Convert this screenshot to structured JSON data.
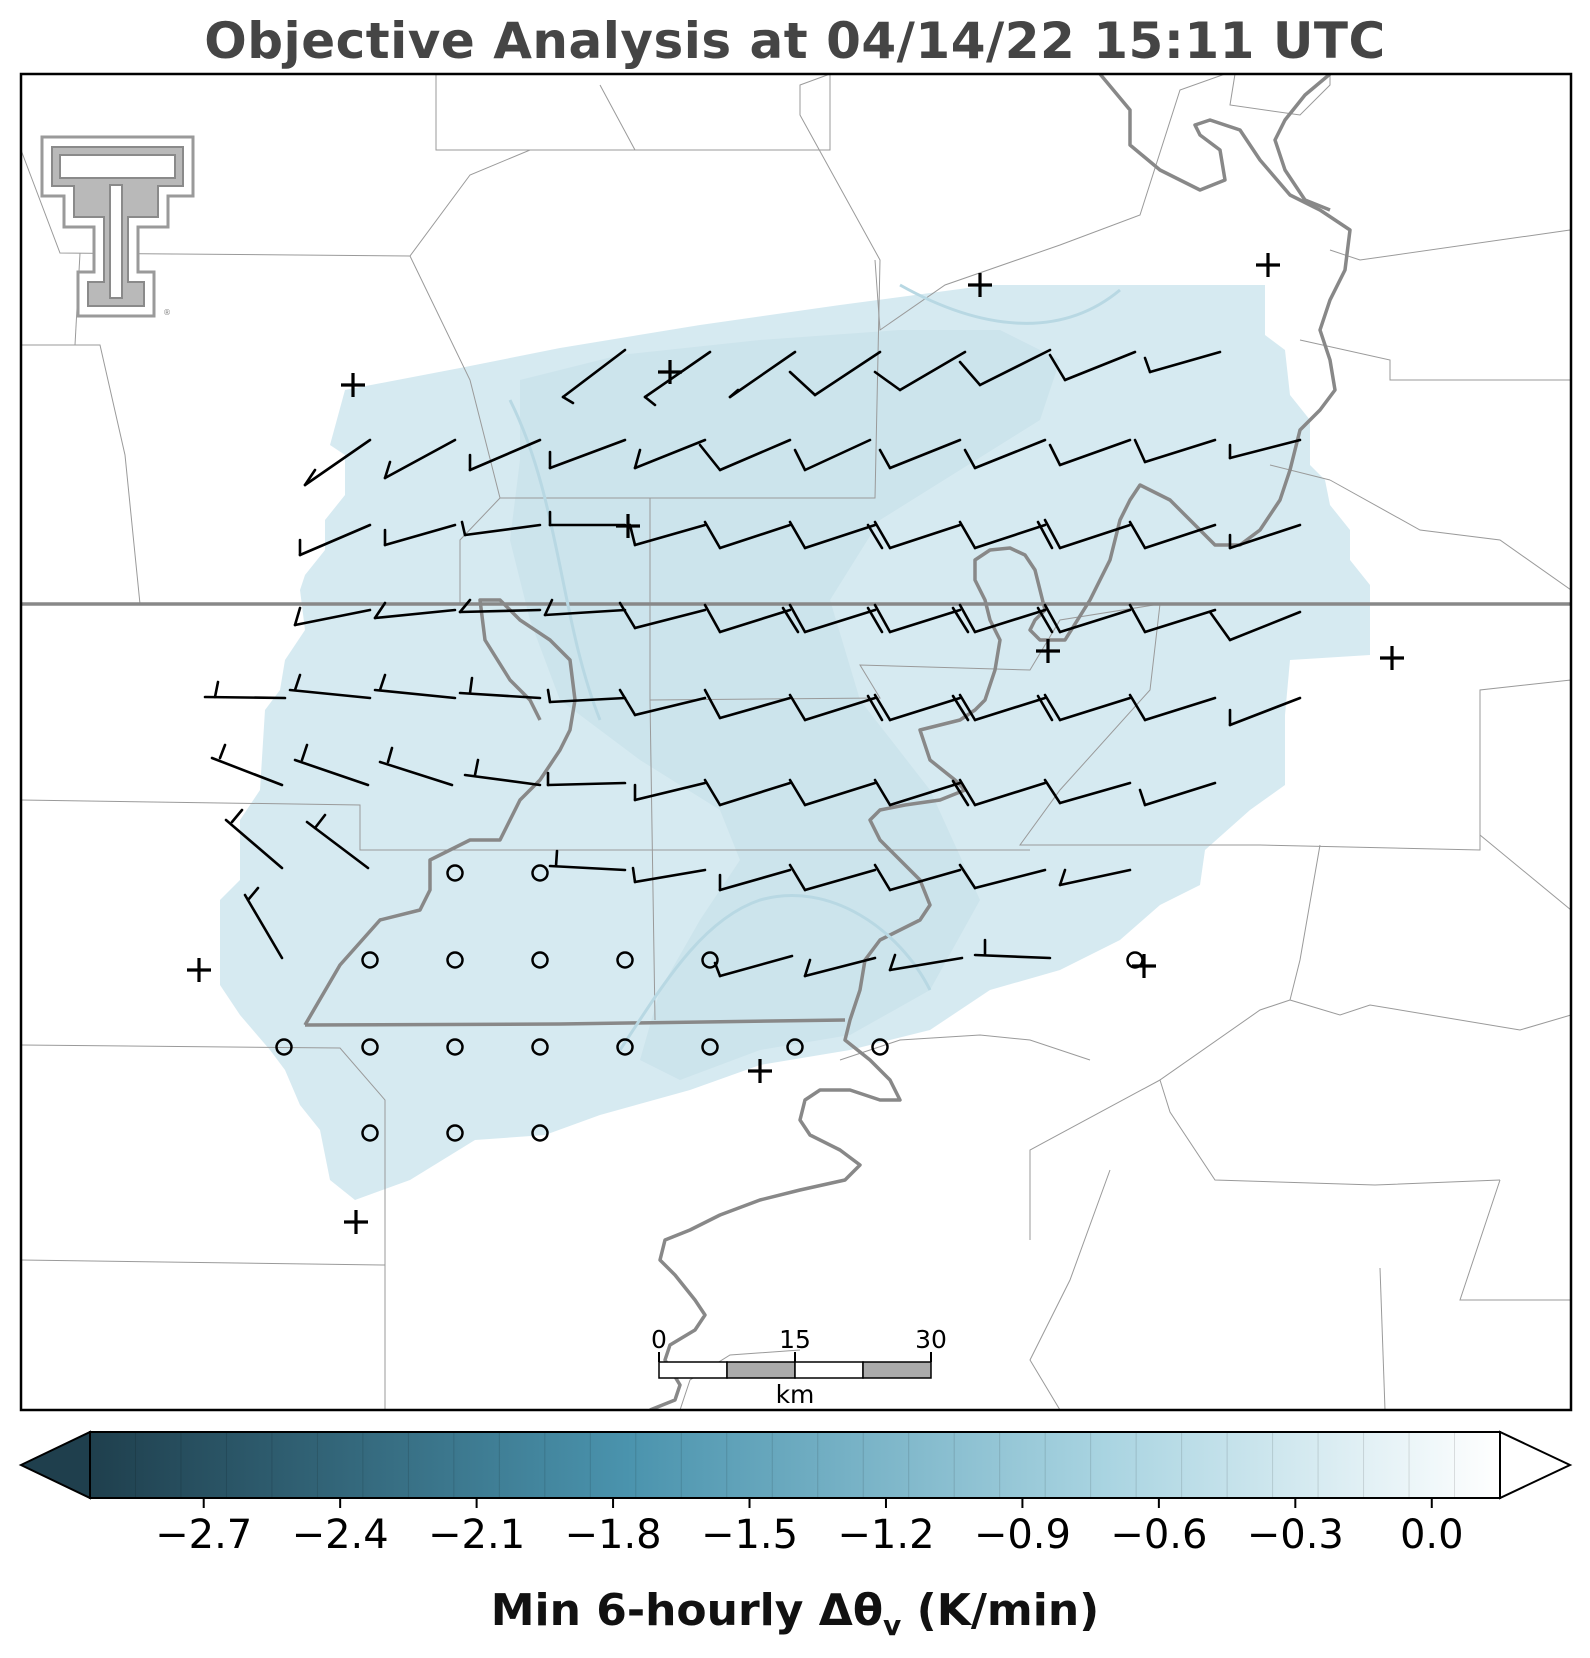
{
  "title": "Objective Analysis at 04/14/22 15:11 UTC",
  "map": {
    "shading_color": "#cfe6ee",
    "state_line_color": "#888888",
    "county_line_color": "#9a9a9a",
    "logo": "texas-tech-double-t-logo",
    "stations_calm_count": 19,
    "stations_missing_count": 12
  },
  "scale_bar": {
    "ticks": [
      "0",
      "15",
      "30"
    ],
    "unit": "km"
  },
  "colorbar": {
    "label_main": "Min 6-hourly Δθ",
    "label_sub": "v",
    "label_unit": " (K/min)",
    "ticks": [
      "−2.7",
      "−2.4",
      "−2.1",
      "−1.8",
      "−1.5",
      "−1.2",
      "−0.9",
      "−0.6",
      "−0.3",
      "0.0"
    ],
    "tick_values": [
      -2.7,
      -2.4,
      -2.1,
      -1.8,
      -1.5,
      -1.2,
      -0.9,
      -0.6,
      -0.3,
      0.0
    ],
    "range": [
      -2.95,
      0.15
    ],
    "color_low": "#1f3f4d",
    "color_mid": "#4a93ad",
    "color_high": "#ffffff",
    "extend": "both"
  }
}
